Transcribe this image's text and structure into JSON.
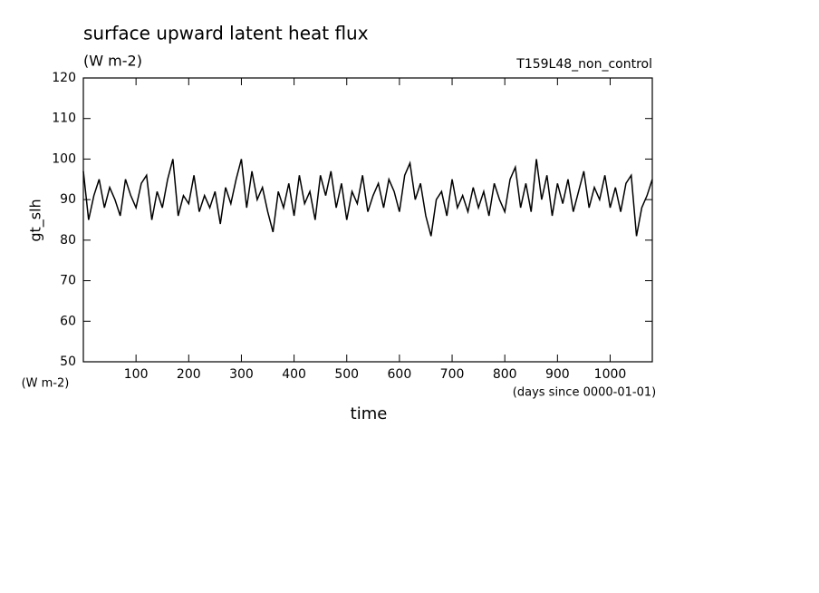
{
  "chart_data": {
    "type": "line",
    "title": "surface upward latent heat flux",
    "subtitle": "(W m-2)",
    "annotation": "T159L48_non_control",
    "y_label": "gt_slh",
    "y_units": "(W m-2)",
    "x_label": "time",
    "x_units": "(days since 0000-01-01)",
    "color": "#000000",
    "xlim": [
      0,
      1080
    ],
    "xticks": [
      100,
      200,
      300,
      400,
      500,
      600,
      700,
      800,
      900,
      1000
    ],
    "ylim": [
      50,
      120
    ],
    "yticks": [
      50,
      60,
      70,
      80,
      90,
      100,
      110,
      120
    ],
    "x": [
      0,
      10,
      20,
      30,
      40,
      50,
      60,
      70,
      80,
      90,
      100,
      110,
      120,
      130,
      140,
      150,
      160,
      170,
      180,
      190,
      200,
      210,
      220,
      230,
      240,
      250,
      260,
      270,
      280,
      290,
      300,
      310,
      320,
      330,
      340,
      350,
      360,
      370,
      380,
      390,
      400,
      410,
      420,
      430,
      440,
      450,
      460,
      470,
      480,
      490,
      500,
      510,
      520,
      530,
      540,
      550,
      560,
      570,
      580,
      590,
      600,
      610,
      620,
      630,
      640,
      650,
      660,
      670,
      680,
      690,
      700,
      710,
      720,
      730,
      740,
      750,
      760,
      770,
      780,
      790,
      800,
      810,
      820,
      830,
      840,
      850,
      860,
      870,
      880,
      890,
      900,
      910,
      920,
      930,
      940,
      950,
      960,
      970,
      980,
      990,
      1000,
      1010,
      1020,
      1030,
      1040,
      1050,
      1060,
      1070,
      1080
    ],
    "values": [
      97,
      85,
      91,
      95,
      88,
      93,
      90,
      86,
      95,
      91,
      88,
      94,
      96,
      85,
      92,
      88,
      95,
      100,
      86,
      91,
      89,
      96,
      87,
      91,
      88,
      92,
      84,
      93,
      89,
      95,
      100,
      88,
      97,
      90,
      93,
      87,
      82,
      92,
      88,
      94,
      86,
      96,
      89,
      92,
      85,
      96,
      91,
      97,
      88,
      94,
      85,
      92,
      89,
      96,
      87,
      91,
      94,
      88,
      95,
      92,
      87,
      96,
      99,
      90,
      94,
      86,
      81,
      90,
      92,
      86,
      95,
      88,
      91,
      87,
      93,
      88,
      92,
      86,
      94,
      90,
      87,
      95,
      98,
      88,
      94,
      87,
      100,
      90,
      96,
      86,
      94,
      89,
      95,
      87,
      92,
      97,
      88,
      93,
      90,
      96,
      88,
      93,
      87,
      94,
      96,
      81,
      88,
      91,
      95
    ]
  }
}
